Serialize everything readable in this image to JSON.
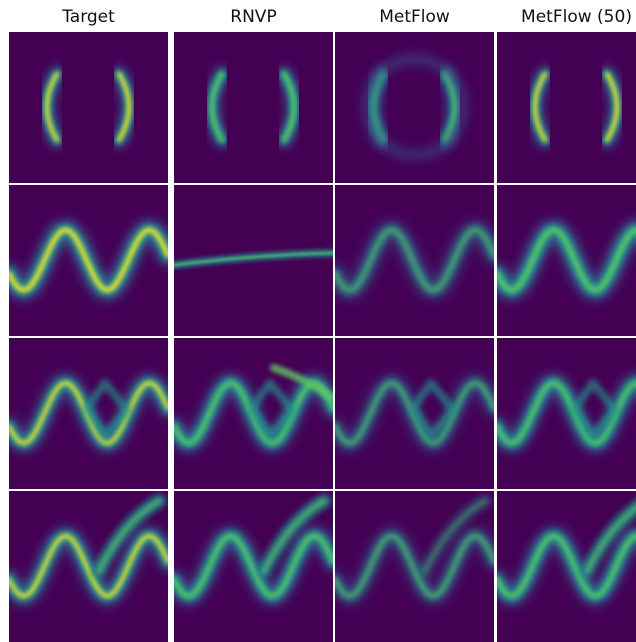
{
  "chart_data": {
    "type": "heatmap",
    "description_colormap": "viridis",
    "columns": [
      "Target",
      "RNVP",
      "MetFlow",
      "MetFlow (50)"
    ],
    "rows": [
      {
        "distribution": "two-moons"
      },
      {
        "distribution": "sine"
      },
      {
        "distribution": "sine-with-branch"
      },
      {
        "distribution": "sine-with-diagonal"
      }
    ],
    "colors": {
      "background": "#440154",
      "low": "#3b528b",
      "mid": "#21918c",
      "high": "#5ec962",
      "peak": "#fde725"
    }
  }
}
